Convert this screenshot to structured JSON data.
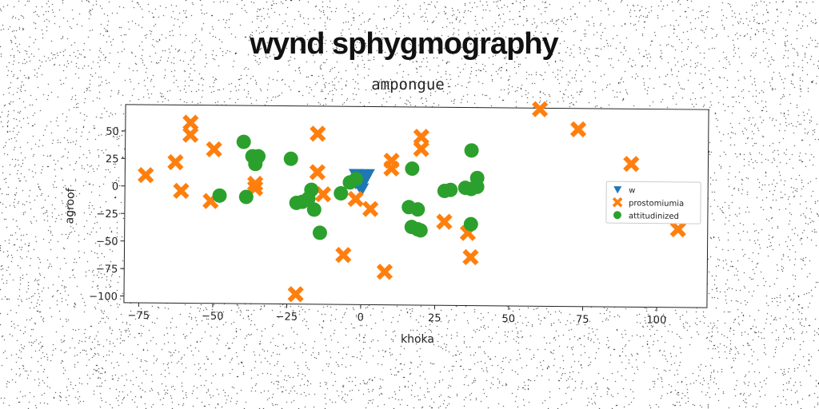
{
  "suptitle": "wynd sphygmography",
  "chart_data": {
    "type": "scatter",
    "title": "ampongue",
    "xlabel": "khoka",
    "ylabel": "agroof",
    "xlim": [
      -80,
      117
    ],
    "ylim": [
      -106,
      74
    ],
    "xticks": [
      -75,
      -50,
      -25,
      0,
      25,
      50,
      75,
      100
    ],
    "yticks": [
      -100,
      -75,
      -50,
      -25,
      0,
      25,
      50
    ],
    "xtick_labels": [
      "−75",
      "−50",
      "−25",
      "0",
      "25",
      "50",
      "75",
      "100"
    ],
    "ytick_labels": [
      "−100",
      "−75",
      "−50",
      "−25",
      "0",
      "25",
      "50"
    ],
    "grid": false,
    "legend": "center-right",
    "series": [
      {
        "name": "w",
        "marker": "triangle-down",
        "color": "#1f77b4",
        "points": [
          [
            -2,
            12
          ],
          [
            0,
            11
          ],
          [
            2,
            12
          ],
          [
            -1,
            8
          ],
          [
            1,
            7
          ],
          [
            -1,
            3
          ],
          [
            0,
            2
          ],
          [
            0,
            -1
          ],
          [
            1,
            9
          ],
          [
            -2,
            5
          ]
        ]
      },
      {
        "name": "prostomiumia",
        "marker": "x",
        "color": "#ff7f0e",
        "points": [
          [
            -73,
            10
          ],
          [
            -63,
            22
          ],
          [
            -61,
            -4
          ],
          [
            -58,
            58
          ],
          [
            -58,
            47
          ],
          [
            -50,
            34
          ],
          [
            -51,
            -13
          ],
          [
            -36,
            3
          ],
          [
            -36,
            -1
          ],
          [
            -15,
            49
          ],
          [
            -15,
            14
          ],
          [
            -13,
            -6
          ],
          [
            -22,
            -97
          ],
          [
            -6,
            -61
          ],
          [
            -2,
            -10
          ],
          [
            3,
            -19
          ],
          [
            8,
            -76
          ],
          [
            10,
            25
          ],
          [
            10,
            18
          ],
          [
            20,
            47
          ],
          [
            20,
            36
          ],
          [
            28,
            -30
          ],
          [
            36,
            -40
          ],
          [
            37,
            -62
          ],
          [
            60,
            73
          ],
          [
            73,
            55
          ],
          [
            91,
            24
          ],
          [
            107,
            -35
          ]
        ]
      },
      {
        "name": "attitudinized",
        "marker": "circle",
        "color": "#2ca02c",
        "points": [
          [
            -48,
            -8
          ],
          [
            -40,
            41
          ],
          [
            -39,
            -9
          ],
          [
            -37,
            28
          ],
          [
            -35,
            28
          ],
          [
            -36,
            21
          ],
          [
            -24,
            26
          ],
          [
            -22,
            -14
          ],
          [
            -20,
            -13
          ],
          [
            -18,
            -10
          ],
          [
            -17,
            -2
          ],
          [
            -16,
            -20
          ],
          [
            -14,
            -41
          ],
          [
            -7,
            -5
          ],
          [
            -4,
            5
          ],
          [
            -2,
            8
          ],
          [
            16,
            -17
          ],
          [
            17,
            -35
          ],
          [
            17,
            18
          ],
          [
            19,
            -37
          ],
          [
            19,
            -19
          ],
          [
            20,
            -38
          ],
          [
            28,
            -2
          ],
          [
            30,
            -1
          ],
          [
            35,
            1
          ],
          [
            37,
            -32
          ],
          [
            37,
            0
          ],
          [
            37,
            35
          ],
          [
            39,
            2
          ],
          [
            39,
            10
          ]
        ]
      }
    ]
  }
}
